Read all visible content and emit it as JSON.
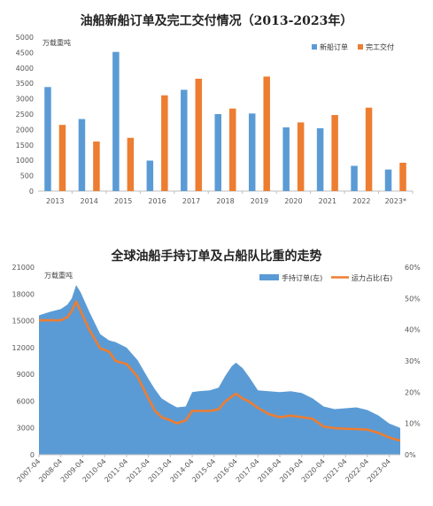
{
  "chart_data": [
    {
      "type": "bar",
      "title": "油船新船订单及完工交付情况（2013-2023年）",
      "unit_label": "万载重吨",
      "categories": [
        "2013",
        "2014",
        "2015",
        "2016",
        "2017",
        "2018",
        "2019",
        "2020",
        "2021",
        "2022",
        "2023*"
      ],
      "series": [
        {
          "name": "新船订单",
          "color": "#5b9bd5",
          "values": [
            3380,
            2340,
            4520,
            990,
            3290,
            2500,
            2520,
            2070,
            2040,
            820,
            700
          ]
        },
        {
          "name": "完工交付",
          "color": "#ed7d31",
          "values": [
            2150,
            1610,
            1730,
            3110,
            3650,
            2680,
            3720,
            2230,
            2470,
            2710,
            920
          ]
        }
      ],
      "ylim": [
        0,
        5000
      ],
      "yticks": [
        0,
        500,
        1000,
        1500,
        2000,
        2500,
        3000,
        3500,
        4000,
        4500,
        5000
      ],
      "grid": false,
      "legend": "top-right"
    },
    {
      "type": "area",
      "title": "全球油船手持订单及占船队比重的走势",
      "unit_label": "万载重吨",
      "x_ticks": [
        "2007-04",
        "2008-04",
        "2009-04",
        "2010-04",
        "2011-04",
        "2012-04",
        "2013-04",
        "2014-04",
        "2015-04",
        "2016-04",
        "2017-04",
        "2018-04",
        "2019-04",
        "2020-04",
        "2021-04",
        "2022-04",
        "2023-04"
      ],
      "x_range": [
        2007.0,
        2023.5
      ],
      "series": [
        {
          "name": "手持订单(左)",
          "kind": "area",
          "axis": "left",
          "color": "#5b9bd5",
          "x": [
            2007.0,
            2007.5,
            2008.0,
            2008.3,
            2008.5,
            2008.7,
            2008.9,
            2009.3,
            2009.8,
            2010.2,
            2010.5,
            2011.0,
            2011.5,
            2012.0,
            2012.3,
            2012.6,
            2013.0,
            2013.3,
            2013.7,
            2014.0,
            2014.3,
            2014.8,
            2015.2,
            2015.5,
            2015.8,
            2016.0,
            2016.3,
            2016.6,
            2017.0,
            2017.5,
            2018.0,
            2018.5,
            2019.0,
            2019.5,
            2020.0,
            2020.5,
            2021.0,
            2021.5,
            2022.0,
            2022.5,
            2023.0,
            2023.5
          ],
          "values": [
            15600,
            16000,
            16300,
            16800,
            17500,
            19000,
            18200,
            16000,
            13500,
            12800,
            12600,
            12000,
            10600,
            8500,
            7300,
            6300,
            5700,
            5300,
            5400,
            7000,
            7100,
            7200,
            7500,
            8800,
            9900,
            10300,
            9700,
            8700,
            7200,
            7100,
            7000,
            7100,
            6900,
            6300,
            5400,
            5100,
            5200,
            5300,
            5000,
            4400,
            3500,
            3000
          ]
        },
        {
          "name": "运力占比(右)",
          "kind": "line",
          "axis": "right",
          "color": "#ed7d31",
          "x": [
            2007.0,
            2007.5,
            2008.0,
            2008.3,
            2008.5,
            2008.7,
            2008.9,
            2009.3,
            2009.8,
            2010.2,
            2010.5,
            2011.0,
            2011.5,
            2012.0,
            2012.3,
            2012.6,
            2013.0,
            2013.3,
            2013.7,
            2014.0,
            2014.3,
            2014.8,
            2015.2,
            2015.5,
            2015.8,
            2016.0,
            2016.3,
            2016.6,
            2017.0,
            2017.5,
            2018.0,
            2018.5,
            2019.0,
            2019.5,
            2020.0,
            2020.5,
            2021.0,
            2021.5,
            2022.0,
            2022.5,
            2023.0,
            2023.5
          ],
          "values": [
            43,
            43,
            43,
            44,
            46,
            49,
            46,
            40,
            34,
            33,
            30,
            29,
            25,
            18,
            14,
            12,
            11,
            10,
            11,
            14,
            14,
            14,
            14.5,
            17,
            18.5,
            19.5,
            18,
            17,
            15,
            13,
            12,
            12.5,
            12,
            11.5,
            9,
            8.5,
            8.3,
            8.2,
            8,
            7,
            5.5,
            4.5
          ]
        }
      ],
      "ylim_left": [
        0,
        21000
      ],
      "yticks_left": [
        0,
        3000,
        6000,
        9000,
        12000,
        15000,
        18000,
        21000
      ],
      "ylim_right": [
        0,
        60
      ],
      "yticks_right": [
        "0%",
        "10%",
        "20%",
        "30%",
        "40%",
        "50%",
        "60%"
      ],
      "grid": false,
      "legend": "top-right"
    }
  ]
}
